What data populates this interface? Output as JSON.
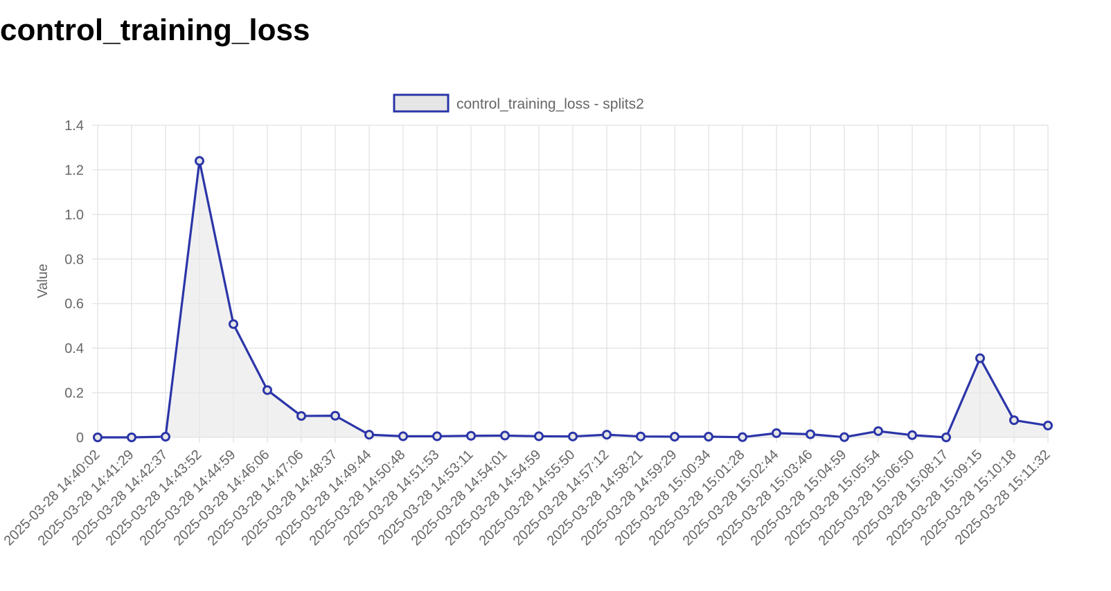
{
  "page": {
    "title": "control_training_loss"
  },
  "chart_data": {
    "type": "line",
    "title": "",
    "xlabel": "",
    "ylabel": "Value",
    "ylim": [
      0,
      1.4
    ],
    "yticks": [
      "0",
      "0.2",
      "0.4",
      "0.6",
      "0.8",
      "1.0",
      "1.2",
      "1.4"
    ],
    "grid": true,
    "legend_position": "top",
    "x": [
      "2025-03-28 14:40:02",
      "2025-03-28 14:41:29",
      "2025-03-28 14:42:37",
      "2025-03-28 14:43:52",
      "2025-03-28 14:44:59",
      "2025-03-28 14:46:06",
      "2025-03-28 14:47:06",
      "2025-03-28 14:48:37",
      "2025-03-28 14:49:44",
      "2025-03-28 14:50:48",
      "2025-03-28 14:51:53",
      "2025-03-28 14:53:11",
      "2025-03-28 14:54:01",
      "2025-03-28 14:54:59",
      "2025-03-28 14:55:50",
      "2025-03-28 14:57:12",
      "2025-03-28 14:58:21",
      "2025-03-28 14:59:29",
      "2025-03-28 15:00:34",
      "2025-03-28 15:01:28",
      "2025-03-28 15:02:44",
      "2025-03-28 15:03:46",
      "2025-03-28 15:04:59",
      "2025-03-28 15:05:54",
      "2025-03-28 15:06:50",
      "2025-03-28 15:08:17",
      "2025-03-28 15:09:15",
      "2025-03-28 15:10:18",
      "2025-03-28 15:11:32"
    ],
    "series": [
      {
        "name": "control_training_loss - splits2",
        "color": "#2b35a8",
        "fill": "#e6e6e6",
        "values": [
          0.0,
          0.0,
          0.003,
          1.24,
          0.508,
          0.212,
          0.096,
          0.097,
          0.012,
          0.005,
          0.005,
          0.007,
          0.008,
          0.005,
          0.004,
          0.012,
          0.004,
          0.003,
          0.003,
          0.001,
          0.019,
          0.014,
          0.001,
          0.028,
          0.01,
          0.0,
          0.355,
          0.077,
          0.053
        ]
      }
    ]
  }
}
